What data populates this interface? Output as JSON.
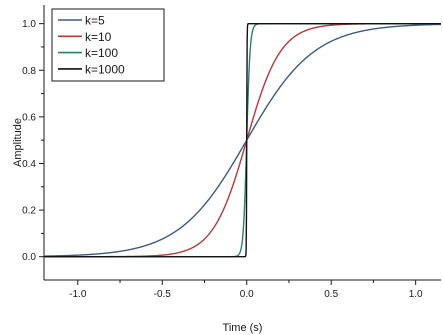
{
  "chart_data": {
    "type": "line",
    "xlabel": "Time (s)",
    "ylabel": "Amplitude",
    "xlim": [
      -1.2,
      1.15
    ],
    "ylim": [
      -0.1,
      1.08
    ],
    "x_ticks": [
      -1.0,
      -0.5,
      0.0,
      0.5,
      1.0
    ],
    "x_tick_labels": [
      "-1.0",
      "-0.5",
      "0.0",
      "0.5",
      "1.0"
    ],
    "y_ticks": [
      0.0,
      0.2,
      0.4,
      0.6,
      0.8,
      1.0
    ],
    "y_tick_labels": [
      "0.0",
      "0.2",
      "0.4",
      "0.6",
      "0.8",
      "1.0"
    ],
    "grid": false,
    "legend_position": "top-left",
    "x_range": [
      -1.2,
      1.15
    ],
    "series": [
      {
        "name": "k=5",
        "k": 5,
        "color": "#3d5a80"
      },
      {
        "name": "k=10",
        "k": 10,
        "color": "#b5383a"
      },
      {
        "name": "k=100",
        "k": 100,
        "color": "#2e7d6e"
      },
      {
        "name": "k=1000",
        "k": 1000,
        "color": "#111111"
      }
    ]
  }
}
